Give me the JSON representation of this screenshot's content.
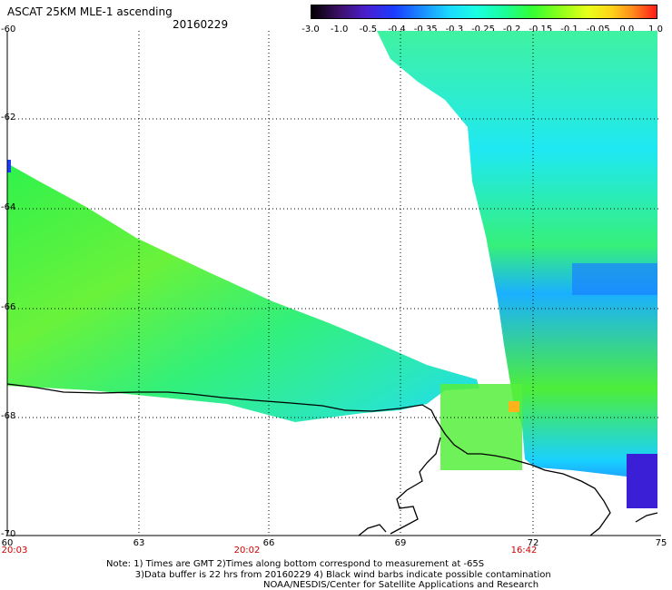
{
  "header": {
    "title": "ASCAT 25KM MLE-1 ascending",
    "date": "20160229"
  },
  "colorbar": {
    "labels": [
      "-3.0",
      "-1.0",
      "-0.5",
      "-0.4",
      "-0.35",
      "-0.3",
      "-0.25",
      "-0.2",
      "-0.15",
      "-0.1",
      "-0.05",
      "0.0",
      "1.0"
    ],
    "colors": [
      "#1a0a33",
      "#4b1a99",
      "#1a1aff",
      "#1a66ff",
      "#1ab3ff",
      "#1affff",
      "#1affb3",
      "#1aff66",
      "#4dff1a",
      "#b3ff1a",
      "#ffff1a",
      "#ff9900",
      "#ff1a1a"
    ]
  },
  "axes": {
    "lat_labels": [
      "-60",
      "-62",
      "-64",
      "-66",
      "-68",
      "-70"
    ],
    "lon_labels": [
      "60",
      "63",
      "66",
      "69",
      "72",
      "75"
    ],
    "time_labels": [
      "20:03",
      "20:02",
      "16:42"
    ]
  },
  "footer": {
    "note": "Note: 1) Times are GMT 2)Times along bottom correspond to measurement at -65S\n          3)Data buffer is 22 hrs from 20160229 4) Black wind barbs indicate possible contamination",
    "credit": "NOAA/NESDIS/Center for Satellite Applications and Research"
  }
}
